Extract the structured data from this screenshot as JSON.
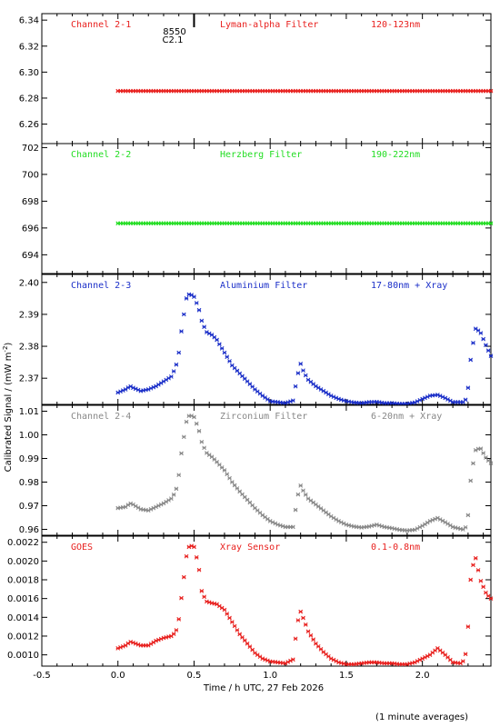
{
  "chart_data": {
    "type": "scatter",
    "xlabel": "Time / h UTC, 27 Feb 2026",
    "ylabel_main": "Calibrated Signal / (mW m",
    "ylabel_sup": "-2",
    "ylabel_end": ")",
    "footnote": "(1 minute averages)",
    "xlim": [
      -0.5,
      2.45
    ],
    "xticks": [
      "-0.5",
      "0.0",
      "0.5",
      "1.0",
      "1.5",
      "2.0"
    ],
    "xtick_values": [
      -0.5,
      0.0,
      0.5,
      1.0,
      1.5,
      2.0
    ],
    "marker_annotation": {
      "x": 0.5,
      "line1": "8550",
      "line2": "C2.1"
    },
    "panels": [
      {
        "channel": "Channel 2-1",
        "filter": "Lyman-alpha Filter",
        "band": "120-123nm",
        "color": "#e8201e",
        "ylim": [
          6.245,
          6.345
        ],
        "yticks": [
          "6.26",
          "6.28",
          "6.30",
          "6.32",
          "6.34"
        ],
        "ytick_values": [
          6.26,
          6.28,
          6.3,
          6.32,
          6.34
        ],
        "mode": "flat",
        "flat_value": 6.2855,
        "x_start": 0.0,
        "x_end": 2.45
      },
      {
        "channel": "Channel 2-2",
        "filter": "Herzberg Filter",
        "band": "190-222nm",
        "color": "#22dd22",
        "ylim": [
          692.6,
          702.3
        ],
        "yticks": [
          "694",
          "696",
          "698",
          "700",
          "702"
        ],
        "ytick_values": [
          694,
          696,
          698,
          700,
          702
        ],
        "mode": "flat",
        "flat_value": 696.35,
        "x_start": 0.0,
        "x_end": 2.45
      },
      {
        "channel": "Channel 2-3",
        "filter": "Aluminium Filter",
        "band": "17-80nm + Xray",
        "color": "#1a2ec8",
        "ylim": [
          2.3618,
          2.4025
        ],
        "yticks": [
          "2.37",
          "2.38",
          "2.39",
          "2.40"
        ],
        "ytick_values": [
          2.37,
          2.38,
          2.39,
          2.4
        ],
        "mode": "curve",
        "x": [
          0.0,
          0.05,
          0.08,
          0.1,
          0.15,
          0.2,
          0.25,
          0.3,
          0.35,
          0.38,
          0.4,
          0.42,
          0.45,
          0.47,
          0.5,
          0.53,
          0.55,
          0.58,
          0.62,
          0.65,
          0.7,
          0.75,
          0.8,
          0.85,
          0.9,
          0.95,
          1.0,
          1.05,
          1.1,
          1.15,
          1.18,
          1.2,
          1.22,
          1.25,
          1.3,
          1.35,
          1.4,
          1.45,
          1.5,
          1.55,
          1.6,
          1.65,
          1.7,
          1.75,
          1.8,
          1.85,
          1.9,
          1.95,
          2.0,
          2.05,
          2.1,
          2.15,
          2.2,
          2.25,
          2.28,
          2.3,
          2.32,
          2.35,
          2.38,
          2.42,
          2.45
        ],
        "y": [
          2.3655,
          2.3665,
          2.3675,
          2.367,
          2.366,
          2.3665,
          2.3675,
          2.369,
          2.3705,
          2.3735,
          2.378,
          2.386,
          2.395,
          2.3965,
          2.3955,
          2.392,
          2.388,
          2.3845,
          2.3835,
          2.382,
          2.378,
          2.374,
          2.3715,
          2.369,
          2.3665,
          2.3645,
          2.3628,
          2.3625,
          2.3622,
          2.363,
          2.371,
          2.3745,
          2.372,
          2.3695,
          2.3675,
          2.366,
          2.3645,
          2.3635,
          2.3628,
          2.3624,
          2.3622,
          2.3625,
          2.3626,
          2.3622,
          2.3622,
          2.362,
          2.362,
          2.3624,
          2.3635,
          2.3645,
          2.3648,
          2.3638,
          2.3625,
          2.3625,
          2.3625,
          2.367,
          2.3775,
          2.3855,
          2.3845,
          2.38,
          2.377
        ]
      },
      {
        "channel": "Channel 2-4",
        "filter": "Zirconium Filter",
        "band": "6-20nm + Xray",
        "color": "#888888",
        "ylim": [
          0.9575,
          1.0125
        ],
        "yticks": [
          "0.96",
          "0.97",
          "0.98",
          "0.99",
          "1.00",
          "1.01"
        ],
        "ytick_values": [
          0.96,
          0.97,
          0.98,
          0.99,
          1.0,
          1.01
        ],
        "mode": "curve",
        "x": [
          0.0,
          0.05,
          0.08,
          0.1,
          0.15,
          0.2,
          0.25,
          0.3,
          0.35,
          0.38,
          0.4,
          0.42,
          0.45,
          0.47,
          0.5,
          0.53,
          0.55,
          0.58,
          0.62,
          0.65,
          0.7,
          0.75,
          0.8,
          0.85,
          0.9,
          0.95,
          1.0,
          1.05,
          1.1,
          1.15,
          1.18,
          1.2,
          1.22,
          1.25,
          1.3,
          1.35,
          1.4,
          1.45,
          1.5,
          1.55,
          1.6,
          1.65,
          1.7,
          1.75,
          1.8,
          1.85,
          1.9,
          1.95,
          2.0,
          2.05,
          2.1,
          2.15,
          2.2,
          2.25,
          2.28,
          2.3,
          2.32,
          2.35,
          2.38,
          2.42,
          2.45
        ],
        "y": [
          0.969,
          0.9695,
          0.971,
          0.9705,
          0.9685,
          0.968,
          0.9695,
          0.971,
          0.973,
          0.976,
          0.983,
          0.994,
          1.0055,
          1.0085,
          1.0075,
          1.0025,
          0.997,
          0.9925,
          0.9905,
          0.9885,
          0.985,
          0.98,
          0.976,
          0.9725,
          0.969,
          0.966,
          0.9635,
          0.962,
          0.961,
          0.961,
          0.974,
          0.9785,
          0.976,
          0.973,
          0.9705,
          0.968,
          0.9655,
          0.9635,
          0.962,
          0.9612,
          0.9608,
          0.9612,
          0.962,
          0.961,
          0.9605,
          0.9598,
          0.9595,
          0.9598,
          0.9615,
          0.9635,
          0.9648,
          0.963,
          0.961,
          0.9602,
          0.9598,
          0.966,
          0.9835,
          0.9935,
          0.9945,
          0.99,
          0.988
        ]
      },
      {
        "channel": "GOES",
        "filter": "Xray Sensor",
        "band": "0.1-0.8nm",
        "color": "#e8201e",
        "ylim": [
          0.00088,
          0.002265
        ],
        "yticks": [
          "0.0010",
          "0.0012",
          "0.0014",
          "0.0016",
          "0.0018",
          "0.0020",
          "0.0022"
        ],
        "ytick_values": [
          0.001,
          0.0012,
          0.0014,
          0.0016,
          0.0018,
          0.002,
          0.0022
        ],
        "mode": "curve",
        "x": [
          0.0,
          0.05,
          0.08,
          0.1,
          0.15,
          0.2,
          0.25,
          0.3,
          0.35,
          0.38,
          0.4,
          0.42,
          0.45,
          0.47,
          0.5,
          0.53,
          0.55,
          0.58,
          0.62,
          0.65,
          0.7,
          0.75,
          0.8,
          0.85,
          0.9,
          0.95,
          1.0,
          1.05,
          1.1,
          1.15,
          1.18,
          1.2,
          1.22,
          1.25,
          1.3,
          1.35,
          1.4,
          1.45,
          1.5,
          1.55,
          1.6,
          1.65,
          1.7,
          1.75,
          1.8,
          1.85,
          1.9,
          1.95,
          2.0,
          2.05,
          2.1,
          2.15,
          2.2,
          2.25,
          2.28,
          2.3,
          2.32,
          2.35,
          2.38,
          2.42,
          2.45
        ],
        "y": [
          0.00107,
          0.0011,
          0.00114,
          0.00113,
          0.0011,
          0.0011,
          0.00115,
          0.00118,
          0.0012,
          0.00124,
          0.00138,
          0.00165,
          0.00205,
          0.00217,
          0.00215,
          0.00195,
          0.00168,
          0.00157,
          0.00155,
          0.00154,
          0.00148,
          0.00135,
          0.00122,
          0.00112,
          0.00102,
          0.00096,
          0.00093,
          0.00092,
          0.00091,
          0.00095,
          0.00135,
          0.00146,
          0.00138,
          0.00125,
          0.00112,
          0.00103,
          0.00096,
          0.00092,
          0.0009,
          0.0009,
          0.00091,
          0.00092,
          0.00092,
          0.00091,
          0.00091,
          0.0009,
          0.0009,
          0.00092,
          0.00096,
          0.001,
          0.00107,
          0.001,
          0.00092,
          0.00091,
          0.00095,
          0.0013,
          0.0019,
          0.00203,
          0.0018,
          0.00165,
          0.0016
        ]
      }
    ]
  }
}
